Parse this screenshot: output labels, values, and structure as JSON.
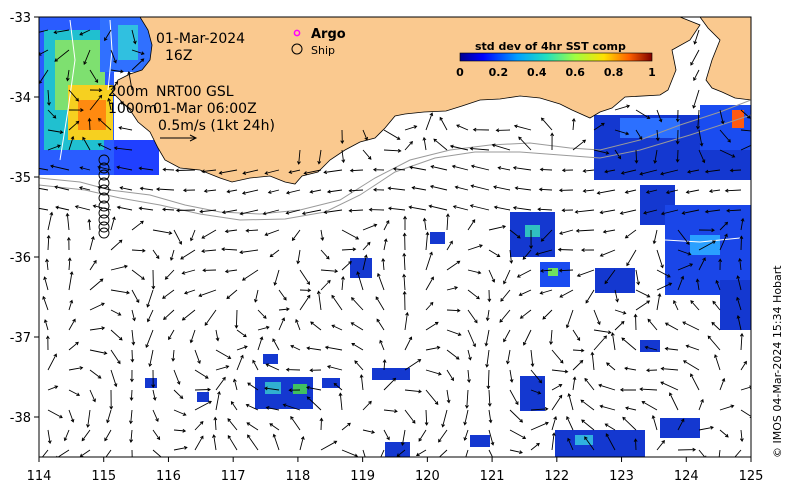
{
  "map": {
    "date_line": "01-Mar-2024",
    "hour_line": "16Z",
    "contour_line_1": "200m",
    "contour_line_2": "1000m",
    "product_line": "NRT00 GSL",
    "time_line": "01-Mar 06:00Z",
    "scale_label": "0.5m/s (1kt 24h)",
    "argo_label": "Argo",
    "ship_label": "Ship",
    "colorbar_title": "std dev of 4hr SST comp",
    "colorbar_ticks": [
      "0",
      "0.2",
      "0.4",
      "0.6",
      "0.8",
      "1"
    ],
    "credit": "© IMOS 04-Mar-2024 15:34 Hobart",
    "x_ticks": [
      "114",
      "115",
      "116",
      "117",
      "118",
      "119",
      "120",
      "121",
      "122",
      "123",
      "124",
      "125"
    ],
    "y_ticks": [
      "-33",
      "-34",
      "-35",
      "-36",
      "-37",
      "-38"
    ],
    "colors": {
      "land": "#fac98f",
      "argo": "#ff00ff",
      "contour": "#9a9a9a",
      "frame": "#000000"
    }
  }
}
